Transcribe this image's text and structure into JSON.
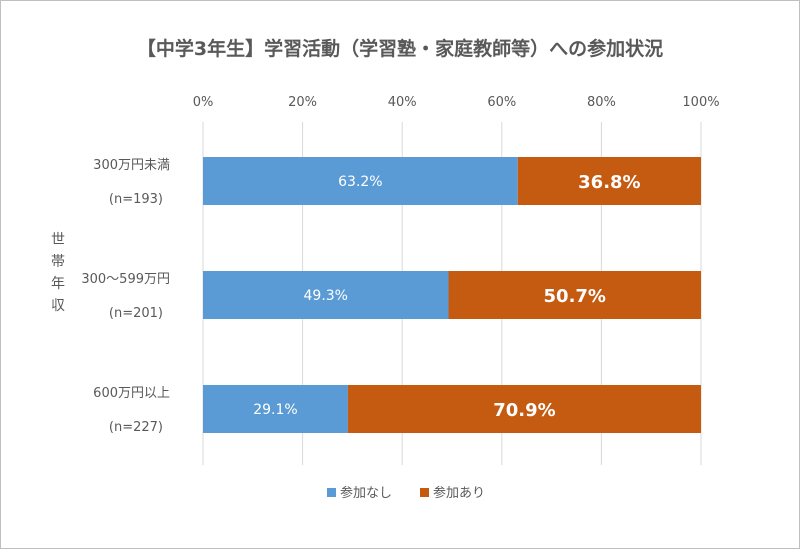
{
  "chart_data": {
    "type": "bar",
    "orientation": "horizontal",
    "stacked": true,
    "title": "【中学3年生】学習活動（学習塾・家庭教師等）への参加状況",
    "ylabel": "世帯年収",
    "categories": [
      [
        "300万円未満",
        "(n=193)"
      ],
      [
        "300～599万円",
        "(n=201)"
      ],
      [
        "600万円以上",
        "(n=227)"
      ]
    ],
    "xlim": [
      0,
      100
    ],
    "xticks": [
      "0%",
      "20%",
      "40%",
      "60%",
      "80%",
      "100%"
    ],
    "series": [
      {
        "name": "参加なし",
        "values": [
          63.2,
          49.3,
          29.1
        ],
        "labels": [
          "63.2%",
          "49.3%",
          "29.1%"
        ],
        "color": "#5b9bd5"
      },
      {
        "name": "参加あり",
        "values": [
          36.8,
          50.7,
          70.9
        ],
        "labels": [
          "36.8%",
          "50.7%",
          "70.9%"
        ],
        "color": "#c55a11"
      }
    ],
    "grid": true,
    "legend": "bottom"
  }
}
